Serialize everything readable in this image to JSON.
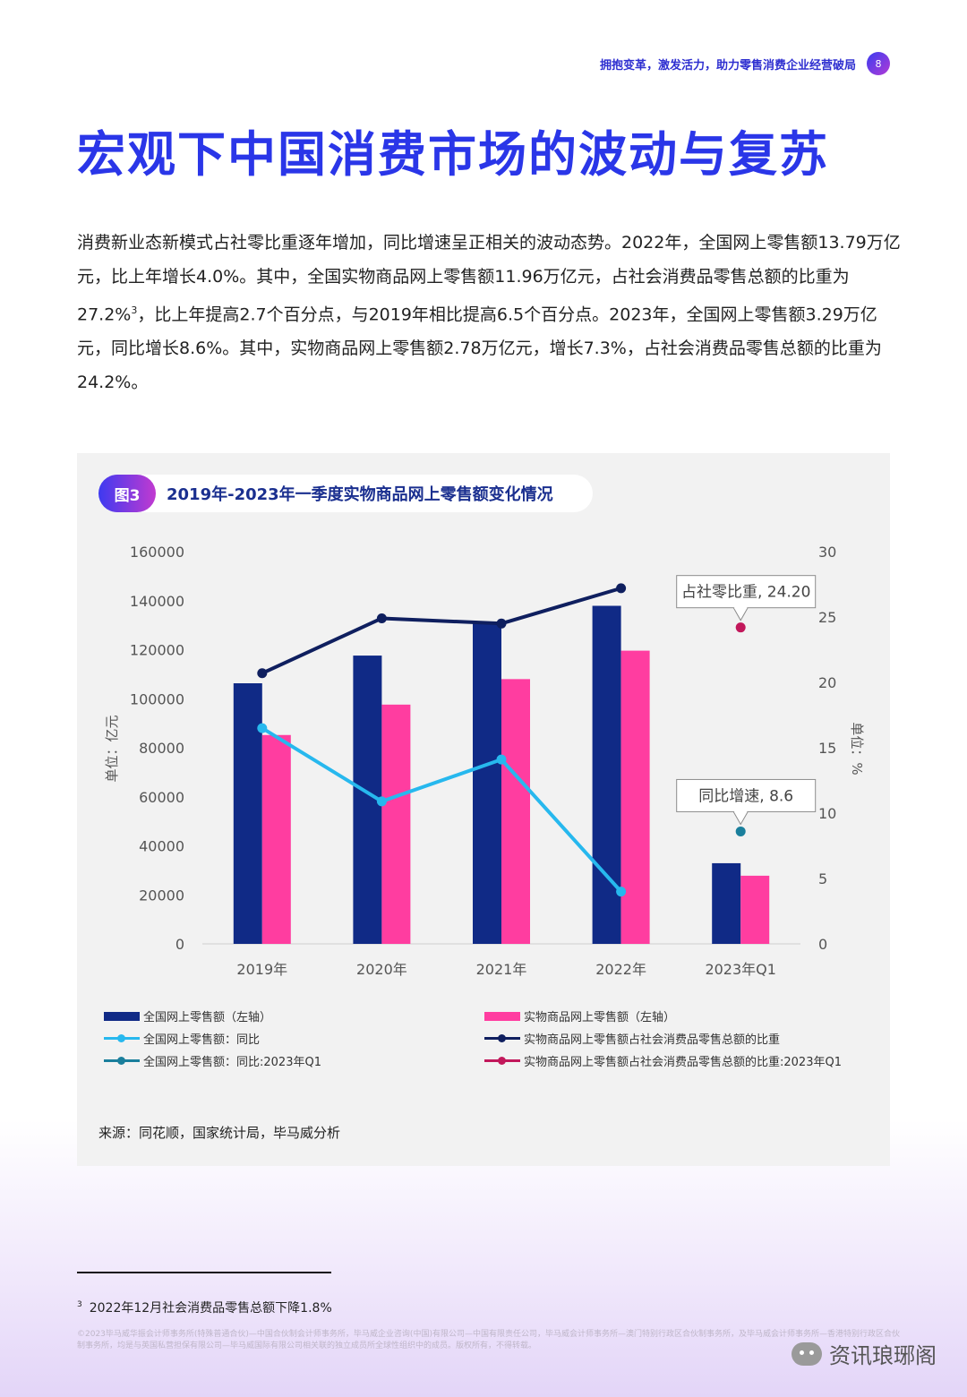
{
  "header": {
    "text": "拥抱变革，激发活力，助力零售消费企业经营破局",
    "page_number": "8"
  },
  "title": "宏观下中国消费市场的波动与复苏",
  "body": {
    "p1": "消费新业态新模式占社零比重逐年增加，同比增速呈正相关的波动态势。2022年，全国网上零售额13.79万亿元，比上年增长4.0%。其中，全国实物商品网上零售额11.96万亿元，占社会消费品零售总额的比重为27.2%",
    "p1_sup": "3",
    "p2": "，比上年提高2.7个百分点，与2019年相比提高6.5个百分点。2023年，全国网上零售额3.29万亿元，同比增长8.6%。其中，实物商品网上零售额2.78万亿元，增长7.3%，占社会消费品零售总额的比重为24.2%。"
  },
  "figure": {
    "tag": "图3",
    "title": "2019年-2023年一季度实物商品网上零售额变化情况",
    "source": "来源：同花顺，国家统计局，毕马威分析"
  },
  "chart_data": {
    "type": "bar",
    "categories": [
      "2019年",
      "2020年",
      "2021年",
      "2022年",
      "2023年Q1"
    ],
    "ylabel": "单位：亿元",
    "y2label": "单位：%",
    "ylim": [
      0,
      160000
    ],
    "y2lim": [
      0,
      30
    ],
    "yticks": [
      0,
      20000,
      40000,
      60000,
      80000,
      100000,
      120000,
      140000,
      160000
    ],
    "y2ticks": [
      0,
      5,
      10,
      15,
      20,
      25,
      30
    ],
    "grid": false,
    "legend_position": "bottom",
    "series": [
      {
        "name": "全国网上零售额（左轴）",
        "type": "bar",
        "axis": "left",
        "color": "#102a86",
        "values": [
          106300,
          117600,
          130900,
          137900,
          32900
        ]
      },
      {
        "name": "实物商品网上零售额（左轴）",
        "type": "bar",
        "axis": "left",
        "color": "#ff3da0",
        "values": [
          85200,
          97600,
          108000,
          119600,
          27800
        ]
      },
      {
        "name": "全国网上零售额：同比",
        "type": "line",
        "axis": "right",
        "color": "#27b8ee",
        "values": [
          16.5,
          10.9,
          14.1,
          4.0,
          null
        ]
      },
      {
        "name": "实物商品网上零售额占社会消费品零售总额的比重",
        "type": "line",
        "axis": "right",
        "color": "#0f1f5f",
        "values": [
          20.7,
          24.9,
          24.5,
          27.2,
          null
        ]
      },
      {
        "name": "全国网上零售额：同比:2023年Q1",
        "type": "scatter",
        "axis": "right",
        "color": "#1a7f9c",
        "values": [
          null,
          null,
          null,
          null,
          8.6
        ]
      },
      {
        "name": "实物商品网上零售额占社会消费品零售总额的比重:2023年Q1",
        "type": "scatter",
        "axis": "right",
        "color": "#c2185b",
        "values": [
          null,
          null,
          null,
          null,
          24.2
        ]
      }
    ],
    "annotations": [
      {
        "text": "占社零比重, 24.20",
        "series": 5,
        "index": 4
      },
      {
        "text": "同比增速, 8.6",
        "series": 4,
        "index": 4
      }
    ]
  },
  "footnote": {
    "mark": "3",
    "text": "2022年12月社会消费品零售总额下降1.8%"
  },
  "copyright": "©2023毕马威华振会计师事务所(特殊普通合伙)—中国合伙制会计师事务所，毕马威企业咨询(中国)有限公司—中国有限责任公司，毕马威会计师事务所—澳门特别行政区合伙制事务所，及毕马威会计师事务所—香港特别行政区合伙制事务所，均是与英国私营担保有限公司—毕马威国际有限公司相关联的独立成员所全球性组织中的成员。版权所有，不得转载。",
  "watermark": {
    "text": "资讯琅琊阁",
    "icon": "wechat-icon"
  }
}
